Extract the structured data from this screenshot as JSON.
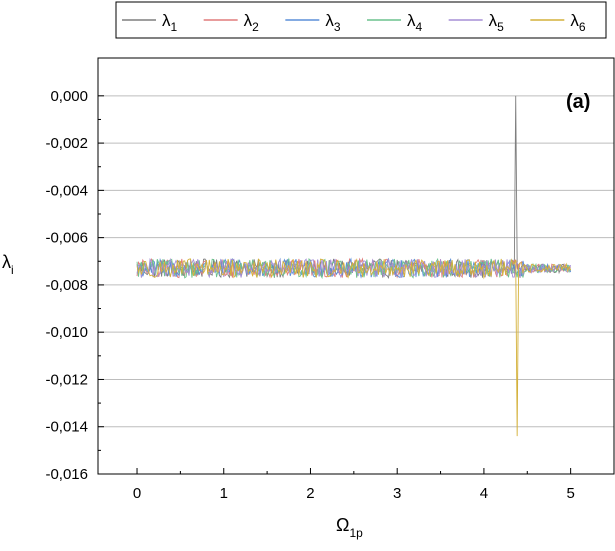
{
  "chart_data": {
    "type": "line",
    "panel_label": "(a)",
    "xlabel": "Ω",
    "xlabel_sub": "1p",
    "ylabel": "λ",
    "ylabel_sub": "i",
    "xlim": [
      -0.45,
      5.5
    ],
    "ylim": [
      -0.016,
      0.0016
    ],
    "xticks": [
      0,
      1,
      2,
      3,
      4,
      5
    ],
    "xtick_labels": [
      "0",
      "1",
      "2",
      "3",
      "4",
      "5"
    ],
    "yticks": [
      0.0,
      -0.002,
      -0.004,
      -0.006,
      -0.008,
      -0.01,
      -0.012,
      -0.014,
      -0.016
    ],
    "ytick_labels": [
      "0,000",
      "-0,002",
      "-0,004",
      "-0,006",
      "-0,008",
      "-0,010",
      "-0,012",
      "-0,014",
      "-0,016"
    ],
    "grid": "horizontal",
    "legend_position": "top",
    "x_range": [
      0,
      5
    ],
    "series_baseline": -0.0073,
    "noise_amplitude": 0.0004,
    "series": [
      {
        "name": "λ",
        "sub": "1",
        "color": "#7f7f7f",
        "spike_at": 4.37,
        "spike_value": 0.0
      },
      {
        "name": "λ",
        "sub": "2",
        "color": "#e07b7b"
      },
      {
        "name": "λ",
        "sub": "3",
        "color": "#5b8fd9"
      },
      {
        "name": "λ",
        "sub": "4",
        "color": "#6cc28d"
      },
      {
        "name": "λ",
        "sub": "5",
        "color": "#a58fd6"
      },
      {
        "name": "λ",
        "sub": "6",
        "color": "#d4b13a",
        "spike_at": 4.38,
        "spike_value": -0.0144
      }
    ]
  }
}
